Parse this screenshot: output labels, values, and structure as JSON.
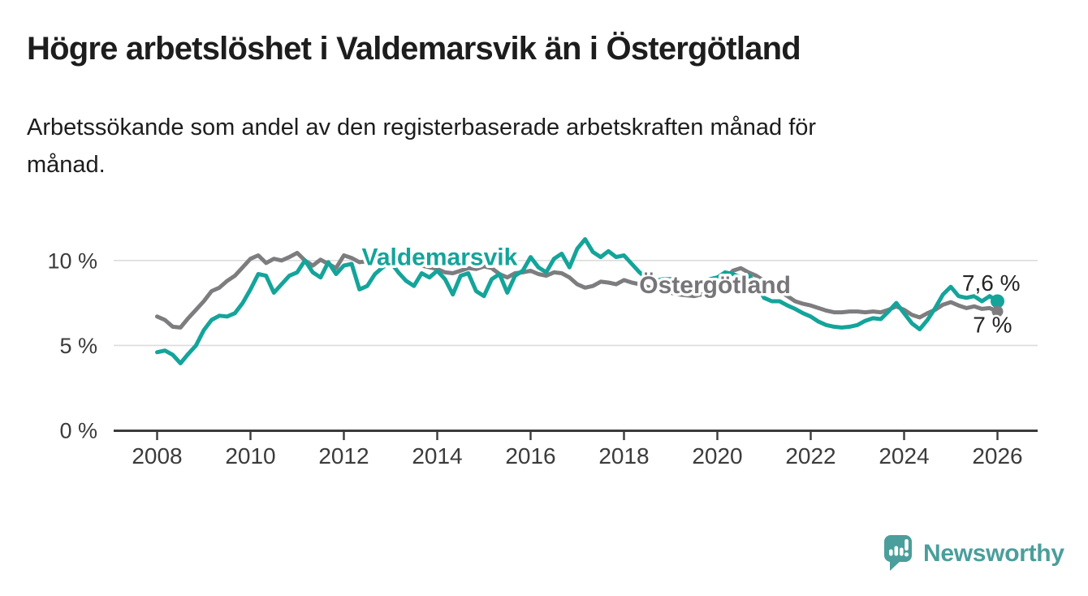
{
  "header": {
    "title": "Högre arbetslöshet i Valdemarsvik än i Östergötland",
    "subtitle_line1": "Arbetssökande som andel av den registerbaserade arbetskraften månad för",
    "subtitle_line2": "månad."
  },
  "footer": {
    "brand": "Newsworthy",
    "logo_icon": "chart-speech-bubble-icon",
    "brand_color": "#4a9e9b"
  },
  "chart_data": {
    "type": "line",
    "title": "Högre arbetslöshet i Valdemarsvik än i Östergötland",
    "unit": "%",
    "grid": "horizontal",
    "legend_position": "inline-labels",
    "x_start_year": 2008,
    "points_per_year": 6,
    "xlim": [
      2007.1,
      2026.9
    ],
    "ylim": [
      0,
      13.5
    ],
    "x_ticks": [
      {
        "year": 2008,
        "label": "2008"
      },
      {
        "year": 2010,
        "label": "2010"
      },
      {
        "year": 2012,
        "label": "2012"
      },
      {
        "year": 2014,
        "label": "2014"
      },
      {
        "year": 2016,
        "label": "2016"
      },
      {
        "year": 2018,
        "label": "2018"
      },
      {
        "year": 2020,
        "label": "2020"
      },
      {
        "year": 2022,
        "label": "2022"
      },
      {
        "year": 2024,
        "label": "2024"
      },
      {
        "year": 2026,
        "label": "2026"
      }
    ],
    "y_ticks": [
      {
        "value": 0,
        "label": "0 %"
      },
      {
        "value": 5,
        "label": "5 %"
      },
      {
        "value": 10,
        "label": "10 %"
      }
    ],
    "series": [
      {
        "name": "Valdemarsvik",
        "color": "#14a49a",
        "label_color": "#14a49a",
        "label_pos_year": 2014.05,
        "label_pos_value": 10.25,
        "end_label": "7,6 %",
        "end_value": 7.6,
        "end_dot": true,
        "values": [
          4.6,
          4.7,
          4.45,
          3.95,
          4.5,
          5.0,
          5.9,
          6.5,
          6.75,
          6.7,
          6.9,
          7.5,
          8.3,
          9.2,
          9.1,
          8.1,
          8.6,
          9.1,
          9.3,
          10.0,
          9.3,
          9.0,
          9.9,
          9.2,
          9.7,
          9.8,
          8.3,
          8.5,
          9.2,
          9.6,
          9.9,
          9.3,
          8.8,
          8.5,
          9.25,
          9.0,
          9.4,
          8.9,
          8.0,
          9.1,
          9.25,
          8.2,
          7.9,
          8.9,
          9.2,
          8.1,
          9.1,
          9.4,
          10.2,
          9.6,
          9.3,
          10.1,
          10.4,
          9.6,
          10.7,
          11.25,
          10.5,
          10.2,
          10.55,
          10.2,
          10.3,
          9.8,
          9.3,
          8.9,
          8.8,
          8.9,
          8.9,
          8.8,
          8.7,
          8.6,
          8.7,
          8.9,
          9.0,
          9.3,
          9.2,
          9.0,
          9.15,
          8.6,
          7.8,
          7.6,
          7.6,
          7.35,
          7.15,
          6.9,
          6.7,
          6.4,
          6.2,
          6.1,
          6.05,
          6.1,
          6.2,
          6.45,
          6.6,
          6.55,
          7.0,
          7.5,
          6.9,
          6.3,
          5.95,
          6.5,
          7.2,
          8.0,
          8.45,
          7.9,
          7.8,
          7.9,
          7.6,
          7.9,
          7.6
        ]
      },
      {
        "name": "Östergötland",
        "color": "#7d7d80",
        "label_color": "#76767a",
        "label_pos_year": 2019.95,
        "label_pos_value": 8.6,
        "end_label": "7 %",
        "end_value": 7.0,
        "end_dot": true,
        "values": [
          6.7,
          6.5,
          6.1,
          6.05,
          6.6,
          7.1,
          7.6,
          8.2,
          8.4,
          8.8,
          9.1,
          9.6,
          10.1,
          10.3,
          9.85,
          10.1,
          10.0,
          10.2,
          10.45,
          10.0,
          9.7,
          10.05,
          9.8,
          9.55,
          10.3,
          10.15,
          9.9,
          9.95,
          10.05,
          9.9,
          9.95,
          9.9,
          9.85,
          9.8,
          9.7,
          9.6,
          9.5,
          9.3,
          9.25,
          9.4,
          9.55,
          9.5,
          9.65,
          9.55,
          9.2,
          9.0,
          9.25,
          9.3,
          9.4,
          9.2,
          9.1,
          9.3,
          9.25,
          9.0,
          8.6,
          8.4,
          8.5,
          8.75,
          8.7,
          8.6,
          8.85,
          8.7,
          8.6,
          8.45,
          8.3,
          8.2,
          8.1,
          8.0,
          7.95,
          7.9,
          8.0,
          8.1,
          8.3,
          8.9,
          9.4,
          9.55,
          9.3,
          9.1,
          8.8,
          8.5,
          8.2,
          7.9,
          7.6,
          7.45,
          7.35,
          7.2,
          7.05,
          6.95,
          6.95,
          7.0,
          7.0,
          6.95,
          7.0,
          6.95,
          7.1,
          7.3,
          7.1,
          6.8,
          6.65,
          6.9,
          7.1,
          7.4,
          7.55,
          7.35,
          7.2,
          7.3,
          7.15,
          7.2,
          7.0
        ]
      }
    ]
  }
}
